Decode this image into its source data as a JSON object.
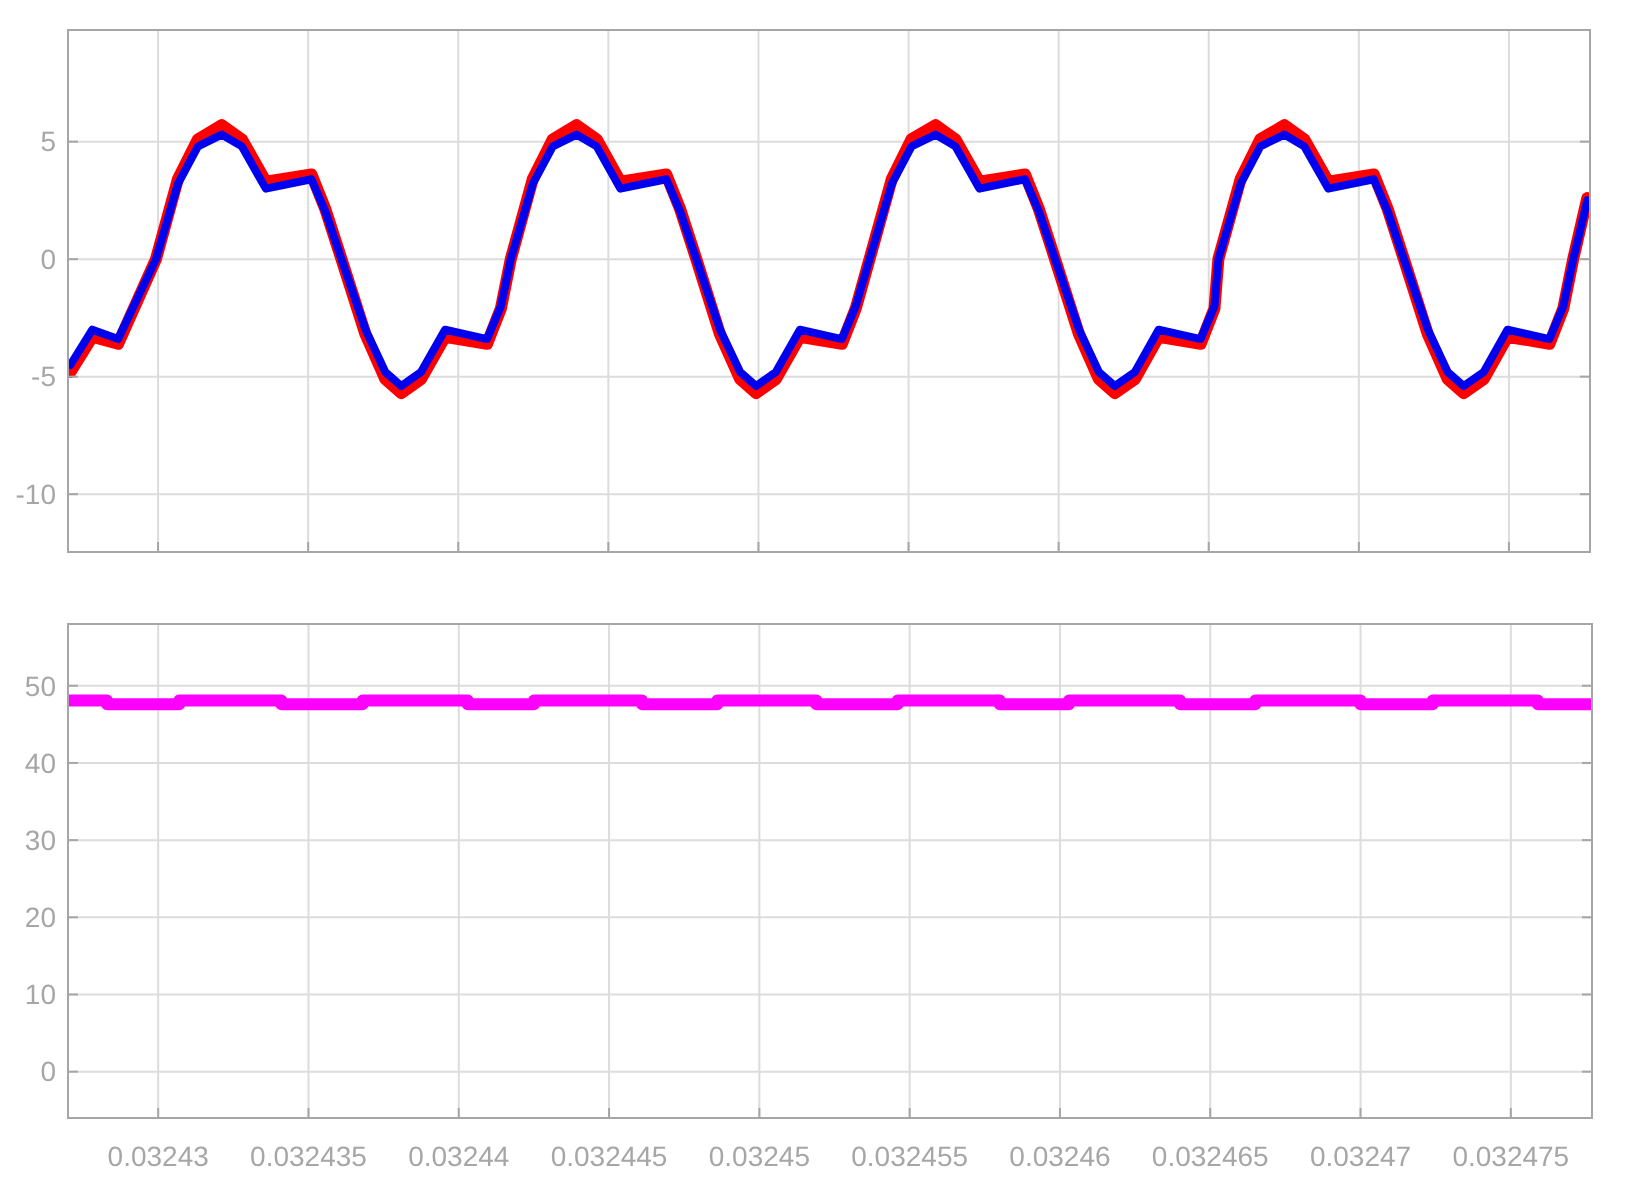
{
  "chart_data": [
    {
      "type": "line",
      "xlim": [
        0.032427,
        0.0324777
      ],
      "ylim": [
        -12.46,
        9.75
      ],
      "xticks": [
        0.03243,
        0.032435,
        0.03244,
        0.032445,
        0.03245,
        0.032455,
        0.03246,
        0.032465,
        0.03247,
        0.032475
      ],
      "yticks": [
        -10,
        -5,
        0,
        5
      ],
      "grid": true,
      "tick_labels": "y",
      "x": [
        0.03242708,
        0.03242781,
        0.03242867,
        0.03242993,
        0.03243066,
        0.03243133,
        0.03243212,
        0.03243279,
        0.03243359,
        0.03243511,
        0.03243558,
        0.03243611,
        0.03243691,
        0.03243757,
        0.0324381,
        0.03243876,
        0.03243956,
        0.03244096,
        0.03244142,
        0.03244175,
        0.03244248,
        0.03244315,
        0.03244394,
        0.03244461,
        0.0324454,
        0.03244693,
        0.0324474,
        0.03244793,
        0.03244872,
        0.03244939,
        0.03244992,
        0.03245058,
        0.03245138,
        0.03245278,
        0.03245324,
        0.0324537,
        0.03245444,
        0.0324551,
        0.0324559,
        0.03245656,
        0.03245736,
        0.03245888,
        0.03245935,
        0.03245988,
        0.03246068,
        0.03246134,
        0.03246187,
        0.03246254,
        0.03246333,
        0.03246473,
        0.03246519,
        0.03246532,
        0.03246606,
        0.03246672,
        0.03246752,
        0.03246818,
        0.03246898,
        0.0324705,
        0.03247097,
        0.0324715,
        0.0324723,
        0.03247296,
        0.03247349,
        0.03247416,
        0.03247495,
        0.03247635,
        0.03247681,
        0.03247714,
        0.03247761
      ],
      "series": [
        {
          "color": "#ff0000",
          "values": [
            -4.8,
            -3.3,
            -3.6,
            0,
            3.4,
            5.1,
            5.7,
            5.1,
            3.3,
            3.6,
            2.1,
            0,
            -3.2,
            -5.1,
            -5.7,
            -5.1,
            -3.3,
            -3.6,
            -2.1,
            0,
            3.4,
            5.1,
            5.7,
            5.1,
            3.3,
            3.6,
            2.1,
            0,
            -3.2,
            -5.1,
            -5.7,
            -5.1,
            -3.3,
            -3.6,
            -2.1,
            0,
            3.4,
            5.1,
            5.7,
            5.1,
            3.3,
            3.6,
            2.1,
            0,
            -3.2,
            -5.1,
            -5.7,
            -5.1,
            -3.3,
            -3.6,
            -2.1,
            0,
            3.4,
            5.1,
            5.7,
            5.1,
            3.3,
            3.6,
            2.1,
            0,
            -3.2,
            -5.1,
            -5.7,
            -5.1,
            -3.3,
            -3.6,
            -2.1,
            0,
            2.6
          ]
        },
        {
          "color": "#0000ee",
          "values": [
            -4.5,
            -3.0,
            -3.4,
            0,
            3.2,
            4.8,
            5.3,
            4.8,
            3.0,
            3.4,
            2.0,
            0,
            -3.0,
            -4.8,
            -5.4,
            -4.8,
            -3.0,
            -3.4,
            -2.0,
            0,
            3.2,
            4.8,
            5.3,
            4.8,
            3.0,
            3.4,
            2.0,
            0,
            -3.0,
            -4.8,
            -5.4,
            -4.8,
            -3.0,
            -3.4,
            -2.0,
            0,
            3.2,
            4.8,
            5.3,
            4.8,
            3.0,
            3.4,
            2.0,
            0,
            -3.0,
            -4.8,
            -5.4,
            -4.8,
            -3.0,
            -3.4,
            -2.0,
            0,
            3.2,
            4.8,
            5.3,
            4.8,
            3.0,
            3.4,
            2.0,
            0,
            -3.0,
            -4.8,
            -5.4,
            -4.8,
            -3.0,
            -3.4,
            -2.0,
            0,
            2.5
          ]
        }
      ]
    },
    {
      "type": "step",
      "xlim": [
        0.032427,
        0.0324777
      ],
      "ylim": [
        -6,
        58
      ],
      "xticks": [
        0.03243,
        0.032435,
        0.03244,
        0.032445,
        0.03245,
        0.032455,
        0.03246,
        0.032465,
        0.03247,
        0.032475
      ],
      "yticks": [
        0,
        10,
        20,
        30,
        40,
        50
      ],
      "grid": true,
      "x": [
        0.032427,
        0.0324283,
        0.0324307,
        0.0324341,
        0.0324368,
        0.0324403,
        0.0324425,
        0.0324461,
        0.0324486,
        0.0324519,
        0.0324546,
        0.032458,
        0.0324603,
        0.032464,
        0.0324665,
        0.03247,
        0.0324724,
        0.0324759,
        0.0324777
      ],
      "series": [
        {
          "color": "#ff00ff",
          "values": [
            48.1,
            47.6,
            48.1,
            47.6,
            48.1,
            47.6,
            48.1,
            47.6,
            48.1,
            47.6,
            48.1,
            47.6,
            48.1,
            47.6,
            48.1,
            47.6,
            48.1,
            47.6,
            47.6
          ]
        }
      ]
    }
  ]
}
